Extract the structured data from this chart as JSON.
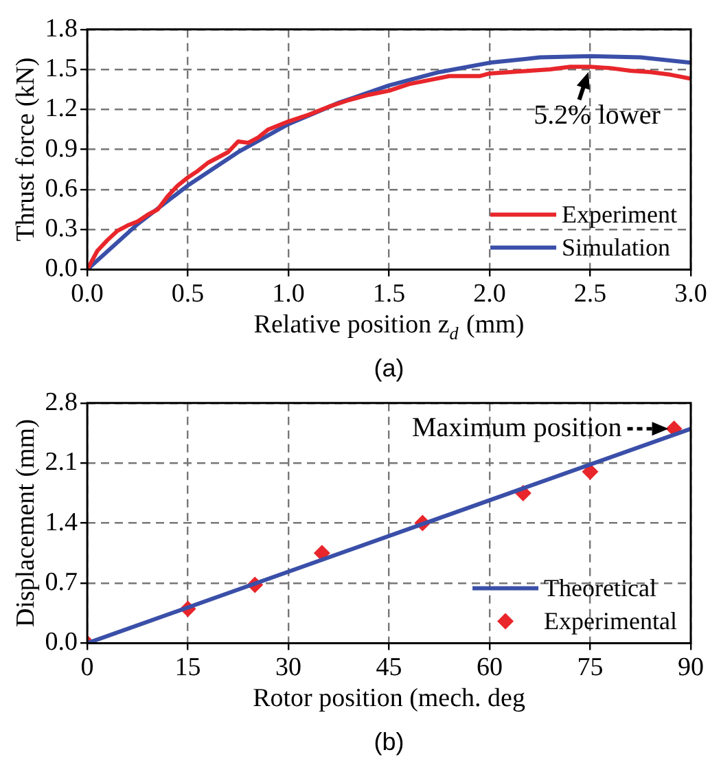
{
  "chart_data": [
    {
      "type": "line",
      "xlabel": "Relative position z$_{d}$ (mm)",
      "ylabel": "Thrust force (kN)",
      "xlim": [
        0,
        3
      ],
      "xticks": [
        {
          "value": 0,
          "label": "0.0"
        },
        {
          "value": 0.5,
          "label": "0.5"
        },
        {
          "value": 1,
          "label": "1.0"
        },
        {
          "value": 1.5,
          "label": "1.5"
        },
        {
          "value": 2,
          "label": "2.0"
        },
        {
          "value": 2.5,
          "label": "2.5"
        },
        {
          "value": 3,
          "label": "3.0"
        }
      ],
      "ylim": [
        0,
        1.8
      ],
      "yticks": [
        {
          "value": 0,
          "label": "0.0"
        },
        {
          "value": 0.3,
          "label": "0.3"
        },
        {
          "value": 0.6,
          "label": "0.6"
        },
        {
          "value": 0.9,
          "label": "0.9"
        },
        {
          "value": 1.2,
          "label": "1.2"
        },
        {
          "value": 1.5,
          "label": "1.5"
        },
        {
          "value": 1.8,
          "label": "1.8"
        }
      ],
      "grid": true,
      "legend": "bottom right",
      "annotations": [
        {
          "text": "5.2% lower",
          "x": 2.5,
          "y": 1.52
        },
        "(a)"
      ],
      "series": [
        {
          "name": "Experiment",
          "color": "#e8262b",
          "x": [
            0,
            0.05,
            0.1,
            0.15,
            0.2,
            0.25,
            0.3,
            0.35,
            0.4,
            0.45,
            0.5,
            0.55,
            0.6,
            0.65,
            0.7,
            0.75,
            0.8,
            0.85,
            0.9,
            1.0,
            1.1,
            1.2,
            1.3,
            1.4,
            1.5,
            1.6,
            1.7,
            1.8,
            1.9,
            1.95,
            2.0,
            2.1,
            2.2,
            2.3,
            2.4,
            2.5,
            2.6,
            2.7,
            2.8,
            2.9,
            3.0
          ],
          "values": [
            0,
            0.14,
            0.22,
            0.29,
            0.33,
            0.36,
            0.41,
            0.45,
            0.55,
            0.63,
            0.69,
            0.74,
            0.8,
            0.84,
            0.88,
            0.96,
            0.95,
            0.99,
            1.05,
            1.11,
            1.16,
            1.22,
            1.27,
            1.31,
            1.34,
            1.39,
            1.42,
            1.45,
            1.45,
            1.45,
            1.47,
            1.48,
            1.49,
            1.5,
            1.52,
            1.52,
            1.51,
            1.49,
            1.48,
            1.46,
            1.43
          ]
        },
        {
          "name": "Simulation",
          "color": "#3a4fa8",
          "x": [
            0,
            0.25,
            0.5,
            0.75,
            1.0,
            1.25,
            1.5,
            1.75,
            2.0,
            2.25,
            2.5,
            2.75,
            3.0
          ],
          "values": [
            0,
            0.34,
            0.63,
            0.88,
            1.09,
            1.25,
            1.38,
            1.48,
            1.55,
            1.59,
            1.6,
            1.59,
            1.55
          ]
        }
      ]
    },
    {
      "type": "line",
      "xlabel": "Rotor position (mech. deg",
      "ylabel": "Displacement (mm)",
      "xlim": [
        0,
        90
      ],
      "xticks": [
        0,
        15,
        30,
        45,
        60,
        75,
        90
      ],
      "ylim": [
        0,
        2.8
      ],
      "yticks": [
        {
          "value": 0,
          "label": "0.0"
        },
        0.7,
        1.4,
        2.1,
        2.8
      ],
      "grid": true,
      "legend": "bottom right",
      "annotations": [
        {
          "text": "Maximum position",
          "x": 87.5,
          "y": 2.5
        },
        "(b)"
      ],
      "series": [
        {
          "name": "Theoretical",
          "color": "#3a4fa8",
          "x": [
            0,
            90
          ],
          "values": [
            0,
            2.5
          ]
        },
        {
          "name": "Experimental",
          "type": "scatter",
          "marker": "diamond",
          "color": "#e8262b",
          "x": [
            0,
            15,
            25,
            35,
            50,
            65,
            75,
            87.5
          ],
          "values": [
            0,
            0.4,
            0.68,
            1.05,
            1.4,
            1.75,
            2.0,
            2.5
          ]
        }
      ]
    }
  ]
}
